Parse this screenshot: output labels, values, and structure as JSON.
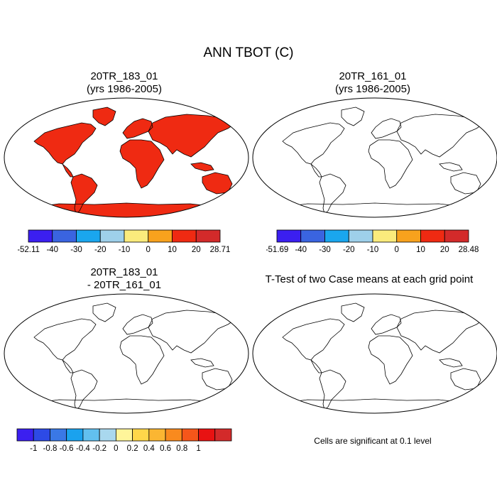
{
  "main_title": "ANN TBOT (C)",
  "panels": [
    {
      "id": "p1",
      "title_line1": "20TR_183_01",
      "title_line2": "(yrs 1986-2005)",
      "type": "absolute"
    },
    {
      "id": "p2",
      "title_line1": "20TR_161_01",
      "title_line2": "(yrs 1986-2005)",
      "type": "absolute"
    },
    {
      "id": "p3",
      "title_line1": "20TR_183_01",
      "title_line2": "- 20TR_161_01",
      "type": "difference"
    },
    {
      "id": "p4",
      "title_line1": "T-Test of two Case means at each grid point",
      "type": "significance"
    }
  ],
  "colorbars": [
    {
      "id": "cb1",
      "colors": [
        "#3b1ff0",
        "#3a64e0",
        "#1aa6ee",
        "#9ed0ea",
        "#fbeb7c",
        "#f8a21d",
        "#ef2a12",
        "#d32a2a"
      ],
      "labels": [
        "-52.11",
        "-40",
        "-30",
        "-20",
        "-10",
        "0",
        "10",
        "20",
        "28.71"
      ]
    },
    {
      "id": "cb2",
      "colors": [
        "#3b1ff0",
        "#3a64e0",
        "#1aa6ee",
        "#9ed0ea",
        "#fbeb7c",
        "#f8a21d",
        "#ef2a12",
        "#d32a2a"
      ],
      "labels": [
        "-51.69",
        "-40",
        "-30",
        "-20",
        "-10",
        "0",
        "10",
        "20",
        "28.48"
      ]
    },
    {
      "id": "cb3",
      "colors": [
        "#3b1ff0",
        "#2d4ae6",
        "#3a78e6",
        "#1aa2ee",
        "#62c0ef",
        "#a9d8ee",
        "#fff59a",
        "#ffd74a",
        "#fbb632",
        "#f98a1e",
        "#f5561a",
        "#e81212",
        "#d32a2a"
      ],
      "labels": [
        "-1",
        "-0.8",
        "-0.6",
        "-0.4",
        "-0.2",
        "0",
        "0.2",
        "0.4",
        "0.6",
        "0.8",
        "1"
      ]
    }
  ],
  "significance_note": "Cells are significant at 0.1 level",
  "colors": {
    "ocean": "#ffffff",
    "coast": "#000000",
    "significant": "#ff0000"
  }
}
